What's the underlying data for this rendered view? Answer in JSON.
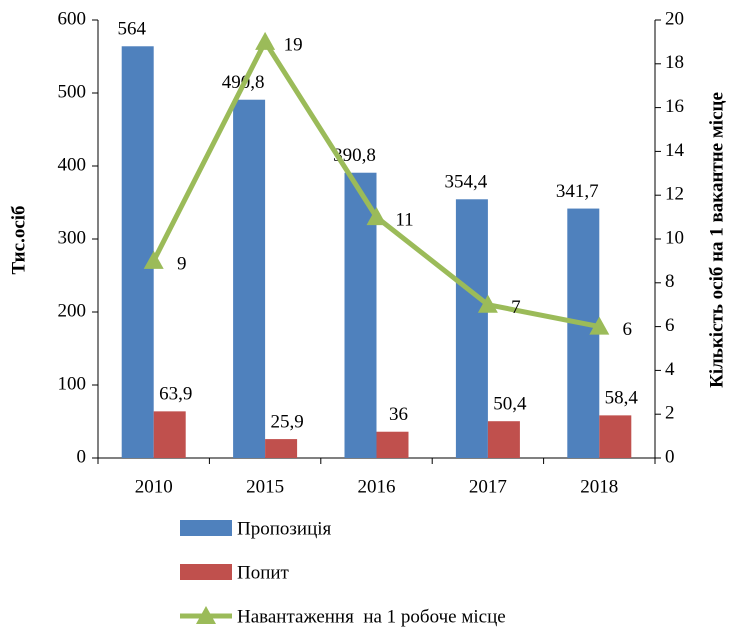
{
  "chart_data": {
    "type": "bar_line",
    "categories": [
      "2010",
      "2015",
      "2016",
      "2017",
      "2018"
    ],
    "series": [
      {
        "name": "Пропозиція",
        "color": "#4f81bd",
        "values": [
          564,
          490.8,
          390.8,
          354.4,
          341.7
        ],
        "value_labels": [
          "564",
          "490,8",
          "390,8",
          "354,4",
          "341,7"
        ]
      },
      {
        "name": "Попит",
        "color": "#c0504d",
        "values": [
          63.9,
          25.9,
          36,
          50.4,
          58.4
        ],
        "value_labels": [
          "63,9",
          "25,9",
          "36",
          "50,4",
          "58,4"
        ]
      },
      {
        "name": "Навантаження  на 1 робоче місце",
        "color": "#9bbb59",
        "axis": "y2",
        "values": [
          9,
          19,
          11,
          7,
          6
        ]
      }
    ],
    "ylabel": "Тис.осіб",
    "y2label": "Кількість осіб на 1 вакантне місце",
    "ylim": [
      0,
      600
    ],
    "yticks": [
      0,
      100,
      200,
      300,
      400,
      500,
      600
    ],
    "y2lim": [
      0,
      20
    ],
    "y2ticks": [
      0,
      2,
      4,
      6,
      8,
      10,
      12,
      14,
      16,
      18,
      20
    ],
    "legend": "bottom"
  }
}
